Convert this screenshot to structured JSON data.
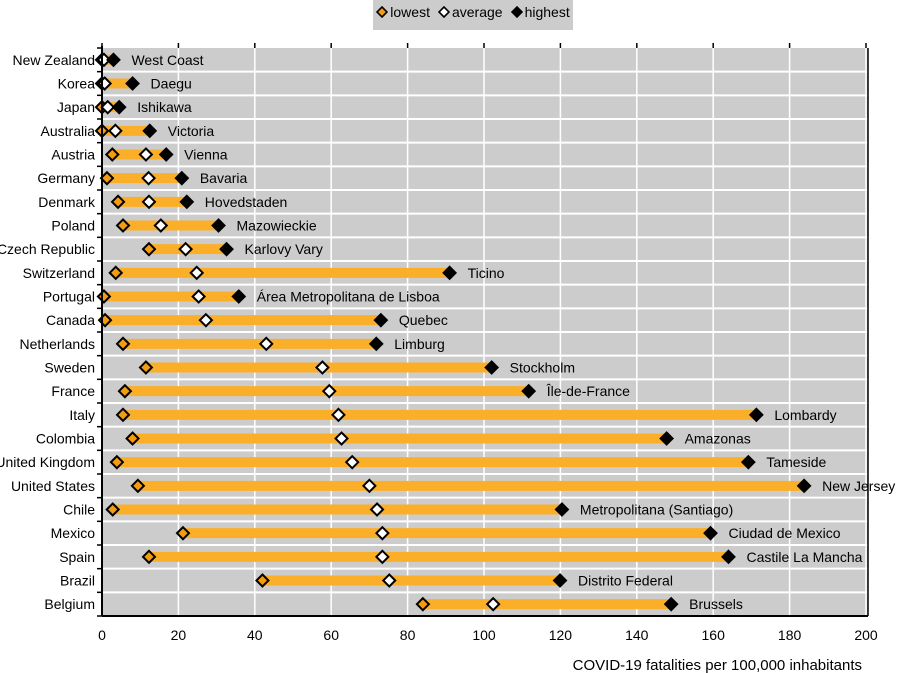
{
  "chart_data": {
    "type": "dumbbell",
    "title": "",
    "xlabel": "COVID-19 fatalities per 100,000 inhabitants",
    "ylabel": "",
    "xlim": [
      0,
      200
    ],
    "xticks": [
      0,
      20,
      40,
      60,
      80,
      100,
      120,
      140,
      160,
      180,
      200
    ],
    "grid": true,
    "legend": {
      "placement": "top-center",
      "entries": [
        {
          "name": "lowest",
          "marker": "diamond",
          "fill": "#f39c12"
        },
        {
          "name": "average",
          "marker": "diamond",
          "fill": "#ffffff"
        },
        {
          "name": "highest",
          "marker": "diamond",
          "fill": "#000000"
        }
      ]
    },
    "colors": {
      "range_bar": "#fbae28",
      "lowest": "#f39c12",
      "average": "#ffffff",
      "highest": "#000000",
      "plot_background": "#cccccc",
      "gridline": "#ffffff"
    },
    "categories": [
      "New Zealand",
      "Korea",
      "Japan",
      "Australia",
      "Austria",
      "Germany",
      "Denmark",
      "Poland",
      "Czech Republic",
      "Switzerland",
      "Portugal",
      "Canada",
      "Netherlands",
      "Sweden",
      "France",
      "Italy",
      "Colombia",
      "United Kingdom",
      "United States",
      "Chile",
      "Mexico",
      "Spain",
      "Brazil",
      "Belgium"
    ],
    "highest_region": [
      "West Coast",
      "Daegu",
      "Ishikawa",
      "Victoria",
      "Vienna",
      "Bavaria",
      "Hovedstaden",
      "Mazowieckie",
      "Karlovy Vary",
      "Ticino",
      "Área Metropolitana de Lisboa",
      "Quebec",
      "Limburg",
      "Stockholm",
      "Île-de-France",
      "Lombardy",
      "Amazonas",
      "Tameside",
      "New Jersey",
      "Metropolitana (Santiago)",
      "Ciudad de Mexico",
      "Castile La Mancha",
      "Distrito Federal",
      "Brussels"
    ],
    "series": [
      {
        "name": "lowest",
        "values": [
          0,
          0,
          0,
          0,
          2.7,
          1.3,
          4.2,
          5.5,
          12.3,
          3.6,
          0.5,
          0.8,
          5.5,
          11.5,
          6,
          5.5,
          8,
          3.9,
          9.4,
          2.8,
          21.2,
          12.3,
          42,
          84
        ]
      },
      {
        "name": "average",
        "values": [
          0.5,
          0.7,
          1.5,
          3.5,
          11.5,
          12.2,
          12.3,
          15.4,
          21.9,
          24.8,
          25.3,
          27.2,
          43,
          57.7,
          59.5,
          61.9,
          62.7,
          65.5,
          70,
          72,
          73.4,
          73.4,
          75.2,
          102.4
        ]
      },
      {
        "name": "highest",
        "values": [
          3,
          8,
          4.5,
          12.5,
          16.8,
          20.9,
          22.2,
          30.5,
          32.6,
          91,
          35.8,
          73,
          71.8,
          102,
          111.7,
          171.3,
          147.8,
          169.2,
          183.8,
          120.4,
          159.3,
          164,
          119.9,
          149
        ]
      }
    ]
  }
}
